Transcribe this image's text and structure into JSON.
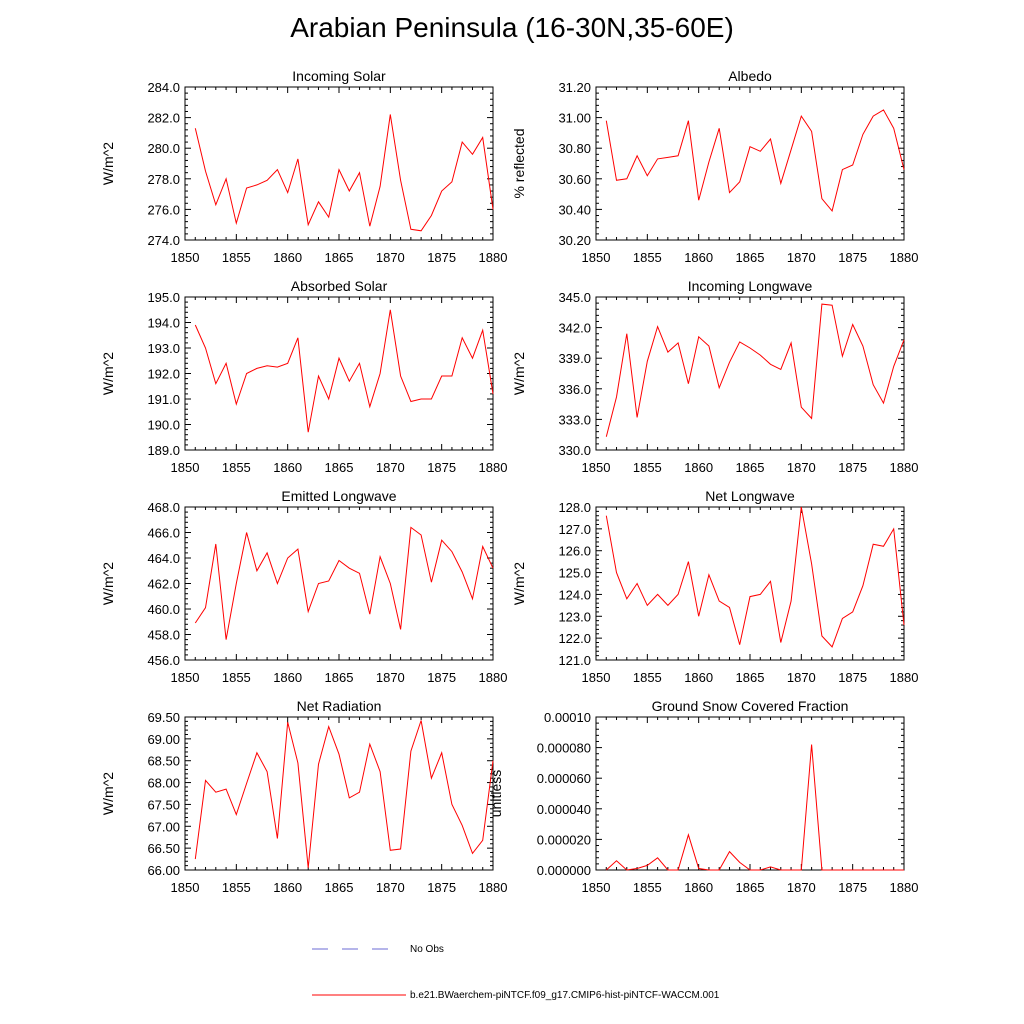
{
  "title": "Arabian Peninsula (16-30N,35-60E)",
  "colors": {
    "model": "#ff0000",
    "obs": "#6b6bd6",
    "axis": "#000000"
  },
  "legend": {
    "obs_label": "No Obs",
    "model_label": "b.e21.BWaerchem-piNTCF.f09_g17.CMIP6-hist-piNTCF-WACCM.001"
  },
  "chart_data": [
    {
      "type": "line",
      "title": "Incoming Solar",
      "ylabel": "W/m^2",
      "xlim": [
        1850,
        1880
      ],
      "ylim": [
        274.0,
        284.0
      ],
      "x_ticks": [
        1850,
        1855,
        1860,
        1865,
        1870,
        1875,
        1880
      ],
      "x_tick_labels": [
        "1850",
        "1855",
        "1860",
        "1865",
        "1870",
        "1875",
        "1880"
      ],
      "y_ticks": [
        274.0,
        276.0,
        278.0,
        280.0,
        282.0,
        284.0
      ],
      "y_tick_labels": [
        "274.0",
        "276.0",
        "278.0",
        "280.0",
        "282.0",
        "284.0"
      ],
      "x": [
        1851,
        1852,
        1853,
        1854,
        1855,
        1856,
        1857,
        1858,
        1859,
        1860,
        1861,
        1862,
        1863,
        1864,
        1865,
        1866,
        1867,
        1868,
        1869,
        1870,
        1871,
        1872,
        1873,
        1874,
        1875,
        1876,
        1877,
        1878,
        1879,
        1880
      ],
      "series": [
        {
          "values": [
            281.3,
            278.5,
            276.3,
            278.0,
            275.1,
            277.4,
            277.6,
            277.9,
            278.6,
            277.1,
            279.3,
            275.0,
            276.5,
            275.5,
            278.6,
            277.2,
            278.4,
            274.9,
            277.5,
            282.2,
            277.9,
            274.7,
            274.6,
            275.6,
            277.2,
            277.8,
            280.4,
            279.6,
            280.7,
            276.0
          ]
        }
      ]
    },
    {
      "type": "line",
      "title": "Albedo",
      "ylabel": "% reflected",
      "xlim": [
        1850,
        1880
      ],
      "ylim": [
        30.2,
        31.2
      ],
      "x_ticks": [
        1850,
        1855,
        1860,
        1865,
        1870,
        1875,
        1880
      ],
      "x_tick_labels": [
        "1850",
        "1855",
        "1860",
        "1865",
        "1870",
        "1875",
        "1880"
      ],
      "y_ticks": [
        30.2,
        30.4,
        30.6,
        30.8,
        31.0,
        31.2
      ],
      "y_tick_labels": [
        "30.20",
        "30.40",
        "30.60",
        "30.80",
        "31.00",
        "31.20"
      ],
      "x": [
        1851,
        1852,
        1853,
        1854,
        1855,
        1856,
        1857,
        1858,
        1859,
        1860,
        1861,
        1862,
        1863,
        1864,
        1865,
        1866,
        1867,
        1868,
        1869,
        1870,
        1871,
        1872,
        1873,
        1874,
        1875,
        1876,
        1877,
        1878,
        1879,
        1880
      ],
      "series": [
        {
          "values": [
            30.98,
            30.59,
            30.6,
            30.75,
            30.62,
            30.73,
            30.74,
            30.75,
            30.98,
            30.46,
            30.71,
            30.93,
            30.51,
            30.58,
            30.81,
            30.78,
            30.86,
            30.57,
            30.79,
            31.01,
            30.91,
            30.47,
            30.39,
            30.66,
            30.69,
            30.89,
            31.01,
            31.05,
            30.93,
            30.66
          ]
        }
      ]
    },
    {
      "type": "line",
      "title": "Absorbed Solar",
      "ylabel": "W/m^2",
      "xlim": [
        1850,
        1880
      ],
      "ylim": [
        189.0,
        195.0
      ],
      "x_ticks": [
        1850,
        1855,
        1860,
        1865,
        1870,
        1875,
        1880
      ],
      "x_tick_labels": [
        "1850",
        "1855",
        "1860",
        "1865",
        "1870",
        "1875",
        "1880"
      ],
      "y_ticks": [
        189.0,
        190.0,
        191.0,
        192.0,
        193.0,
        194.0,
        195.0
      ],
      "y_tick_labels": [
        "189.0",
        "190.0",
        "191.0",
        "192.0",
        "193.0",
        "194.0",
        "195.0"
      ],
      "x": [
        1851,
        1852,
        1853,
        1854,
        1855,
        1856,
        1857,
        1858,
        1859,
        1860,
        1861,
        1862,
        1863,
        1864,
        1865,
        1866,
        1867,
        1868,
        1869,
        1870,
        1871,
        1872,
        1873,
        1874,
        1875,
        1876,
        1877,
        1878,
        1879,
        1880
      ],
      "series": [
        {
          "values": [
            193.9,
            193.0,
            191.6,
            192.4,
            190.8,
            192.0,
            192.2,
            192.3,
            192.25,
            192.4,
            193.4,
            189.7,
            191.9,
            191.0,
            192.6,
            191.7,
            192.4,
            190.7,
            192.0,
            194.5,
            191.9,
            190.9,
            191.0,
            191.0,
            191.9,
            191.9,
            193.4,
            192.6,
            193.7,
            191.2
          ]
        }
      ]
    },
    {
      "type": "line",
      "title": "Incoming Longwave",
      "ylabel": "W/m^2",
      "xlim": [
        1850,
        1880
      ],
      "ylim": [
        330.0,
        345.0
      ],
      "x_ticks": [
        1850,
        1855,
        1860,
        1865,
        1870,
        1875,
        1880
      ],
      "x_tick_labels": [
        "1850",
        "1855",
        "1860",
        "1865",
        "1870",
        "1875",
        "1880"
      ],
      "y_ticks": [
        330.0,
        333.0,
        336.0,
        339.0,
        342.0,
        345.0
      ],
      "y_tick_labels": [
        "330.0",
        "333.0",
        "336.0",
        "339.0",
        "342.0",
        "345.0"
      ],
      "x": [
        1851,
        1852,
        1853,
        1854,
        1855,
        1856,
        1857,
        1858,
        1859,
        1860,
        1861,
        1862,
        1863,
        1864,
        1865,
        1866,
        1867,
        1868,
        1869,
        1870,
        1871,
        1872,
        1873,
        1874,
        1875,
        1876,
        1877,
        1878,
        1879,
        1880
      ],
      "series": [
        {
          "values": [
            331.3,
            335.2,
            341.4,
            333.2,
            338.7,
            342.1,
            339.6,
            340.5,
            336.5,
            341.1,
            340.2,
            336.1,
            338.6,
            340.6,
            340.0,
            339.3,
            338.4,
            337.9,
            340.5,
            334.2,
            333.1,
            344.3,
            344.2,
            339.2,
            342.3,
            340.2,
            336.4,
            334.6,
            338.2,
            340.8
          ]
        }
      ]
    },
    {
      "type": "line",
      "title": "Emitted Longwave",
      "ylabel": "W/m^2",
      "xlim": [
        1850,
        1880
      ],
      "ylim": [
        456.0,
        468.0
      ],
      "x_ticks": [
        1850,
        1855,
        1860,
        1865,
        1870,
        1875,
        1880
      ],
      "x_tick_labels": [
        "1850",
        "1855",
        "1860",
        "1865",
        "1870",
        "1875",
        "1880"
      ],
      "y_ticks": [
        456.0,
        458.0,
        460.0,
        462.0,
        464.0,
        466.0,
        468.0
      ],
      "y_tick_labels": [
        "456.0",
        "458.0",
        "460.0",
        "462.0",
        "464.0",
        "466.0",
        "468.0"
      ],
      "x": [
        1851,
        1852,
        1853,
        1854,
        1855,
        1856,
        1857,
        1858,
        1859,
        1860,
        1861,
        1862,
        1863,
        1864,
        1865,
        1866,
        1867,
        1868,
        1869,
        1870,
        1871,
        1872,
        1873,
        1874,
        1875,
        1876,
        1877,
        1878,
        1879,
        1880
      ],
      "series": [
        {
          "values": [
            458.9,
            460.1,
            465.1,
            457.6,
            462.0,
            466.0,
            463.0,
            464.4,
            462.0,
            464.0,
            464.7,
            459.8,
            462.0,
            462.2,
            463.8,
            463.2,
            462.8,
            459.6,
            464.1,
            462.0,
            458.4,
            466.4,
            465.8,
            462.1,
            465.4,
            464.5,
            462.9,
            460.8,
            464.9,
            463.2
          ]
        }
      ]
    },
    {
      "type": "line",
      "title": "Net Longwave",
      "ylabel": "W/m^2",
      "xlim": [
        1850,
        1880
      ],
      "ylim": [
        121.0,
        128.0
      ],
      "x_ticks": [
        1850,
        1855,
        1860,
        1865,
        1870,
        1875,
        1880
      ],
      "x_tick_labels": [
        "1850",
        "1855",
        "1860",
        "1865",
        "1870",
        "1875",
        "1880"
      ],
      "y_ticks": [
        121.0,
        122.0,
        123.0,
        124.0,
        125.0,
        126.0,
        127.0,
        128.0
      ],
      "y_tick_labels": [
        "121.0",
        "122.0",
        "123.0",
        "124.0",
        "125.0",
        "126.0",
        "127.0",
        "128.0"
      ],
      "x": [
        1851,
        1852,
        1853,
        1854,
        1855,
        1856,
        1857,
        1858,
        1859,
        1860,
        1861,
        1862,
        1863,
        1864,
        1865,
        1866,
        1867,
        1868,
        1869,
        1870,
        1871,
        1872,
        1873,
        1874,
        1875,
        1876,
        1877,
        1878,
        1879,
        1880
      ],
      "series": [
        {
          "values": [
            127.6,
            125.0,
            123.8,
            124.5,
            123.5,
            124.0,
            123.5,
            124.0,
            125.5,
            123.0,
            124.9,
            123.7,
            123.4,
            121.7,
            123.9,
            124.0,
            124.6,
            121.8,
            123.7,
            128.0,
            125.4,
            122.1,
            121.6,
            122.9,
            123.2,
            124.4,
            126.3,
            126.2,
            127.0,
            122.6
          ]
        }
      ]
    },
    {
      "type": "line",
      "title": "Net Radiation",
      "ylabel": "W/m^2",
      "xlim": [
        1850,
        1880
      ],
      "ylim": [
        66.0,
        69.5
      ],
      "x_ticks": [
        1850,
        1855,
        1860,
        1865,
        1870,
        1875,
        1880
      ],
      "x_tick_labels": [
        "1850",
        "1855",
        "1860",
        "1865",
        "1870",
        "1875",
        "1880"
      ],
      "y_ticks": [
        66.0,
        66.5,
        67.0,
        67.5,
        68.0,
        68.5,
        69.0,
        69.5
      ],
      "y_tick_labels": [
        "66.00",
        "66.50",
        "67.00",
        "67.50",
        "68.00",
        "68.50",
        "69.00",
        "69.50"
      ],
      "x": [
        1851,
        1852,
        1853,
        1854,
        1855,
        1856,
        1857,
        1858,
        1859,
        1860,
        1861,
        1862,
        1863,
        1864,
        1865,
        1866,
        1867,
        1868,
        1869,
        1870,
        1871,
        1872,
        1873,
        1874,
        1875,
        1876,
        1877,
        1878,
        1879,
        1880
      ],
      "series": [
        {
          "values": [
            66.25,
            68.05,
            67.78,
            67.85,
            67.27,
            67.98,
            68.68,
            68.25,
            66.72,
            69.38,
            68.45,
            66.05,
            68.42,
            69.28,
            68.65,
            67.65,
            67.78,
            68.88,
            68.25,
            66.45,
            66.48,
            68.72,
            69.42,
            68.1,
            68.68,
            67.5,
            67.02,
            66.38,
            66.68,
            68.5
          ]
        }
      ]
    },
    {
      "type": "line",
      "title": "Ground Snow Covered Fraction",
      "ylabel": "unitless",
      "xlim": [
        1850,
        1880
      ],
      "ylim": [
        0.0,
        0.0001
      ],
      "x_ticks": [
        1850,
        1855,
        1860,
        1865,
        1870,
        1875,
        1880
      ],
      "x_tick_labels": [
        "1850",
        "1855",
        "1860",
        "1865",
        "1870",
        "1875",
        "1880"
      ],
      "y_ticks": [
        0.0,
        2e-05,
        4e-05,
        6e-05,
        8e-05,
        0.0001
      ],
      "y_tick_labels": [
        "0.000000",
        "0.000020",
        "0.000040",
        "0.000060",
        "0.000080",
        "0.00010"
      ],
      "x": [
        1851,
        1852,
        1853,
        1854,
        1855,
        1856,
        1857,
        1858,
        1859,
        1860,
        1861,
        1862,
        1863,
        1864,
        1865,
        1866,
        1867,
        1868,
        1869,
        1870,
        1871,
        1872,
        1873,
        1874,
        1875,
        1876,
        1877,
        1878,
        1879,
        1880
      ],
      "series": [
        {
          "values": [
            0.0,
            6e-06,
            0.0,
            1e-06,
            3e-06,
            8e-06,
            0.0,
            0.0,
            2.3e-05,
            1e-06,
            0.0,
            0.0,
            1.2e-05,
            5e-06,
            0.0,
            0.0,
            2e-06,
            0.0,
            0.0,
            0.0,
            8.2e-05,
            0.0,
            0.0,
            0.0,
            0.0,
            0.0,
            0.0,
            0.0,
            0.0,
            0.0
          ]
        }
      ]
    }
  ]
}
